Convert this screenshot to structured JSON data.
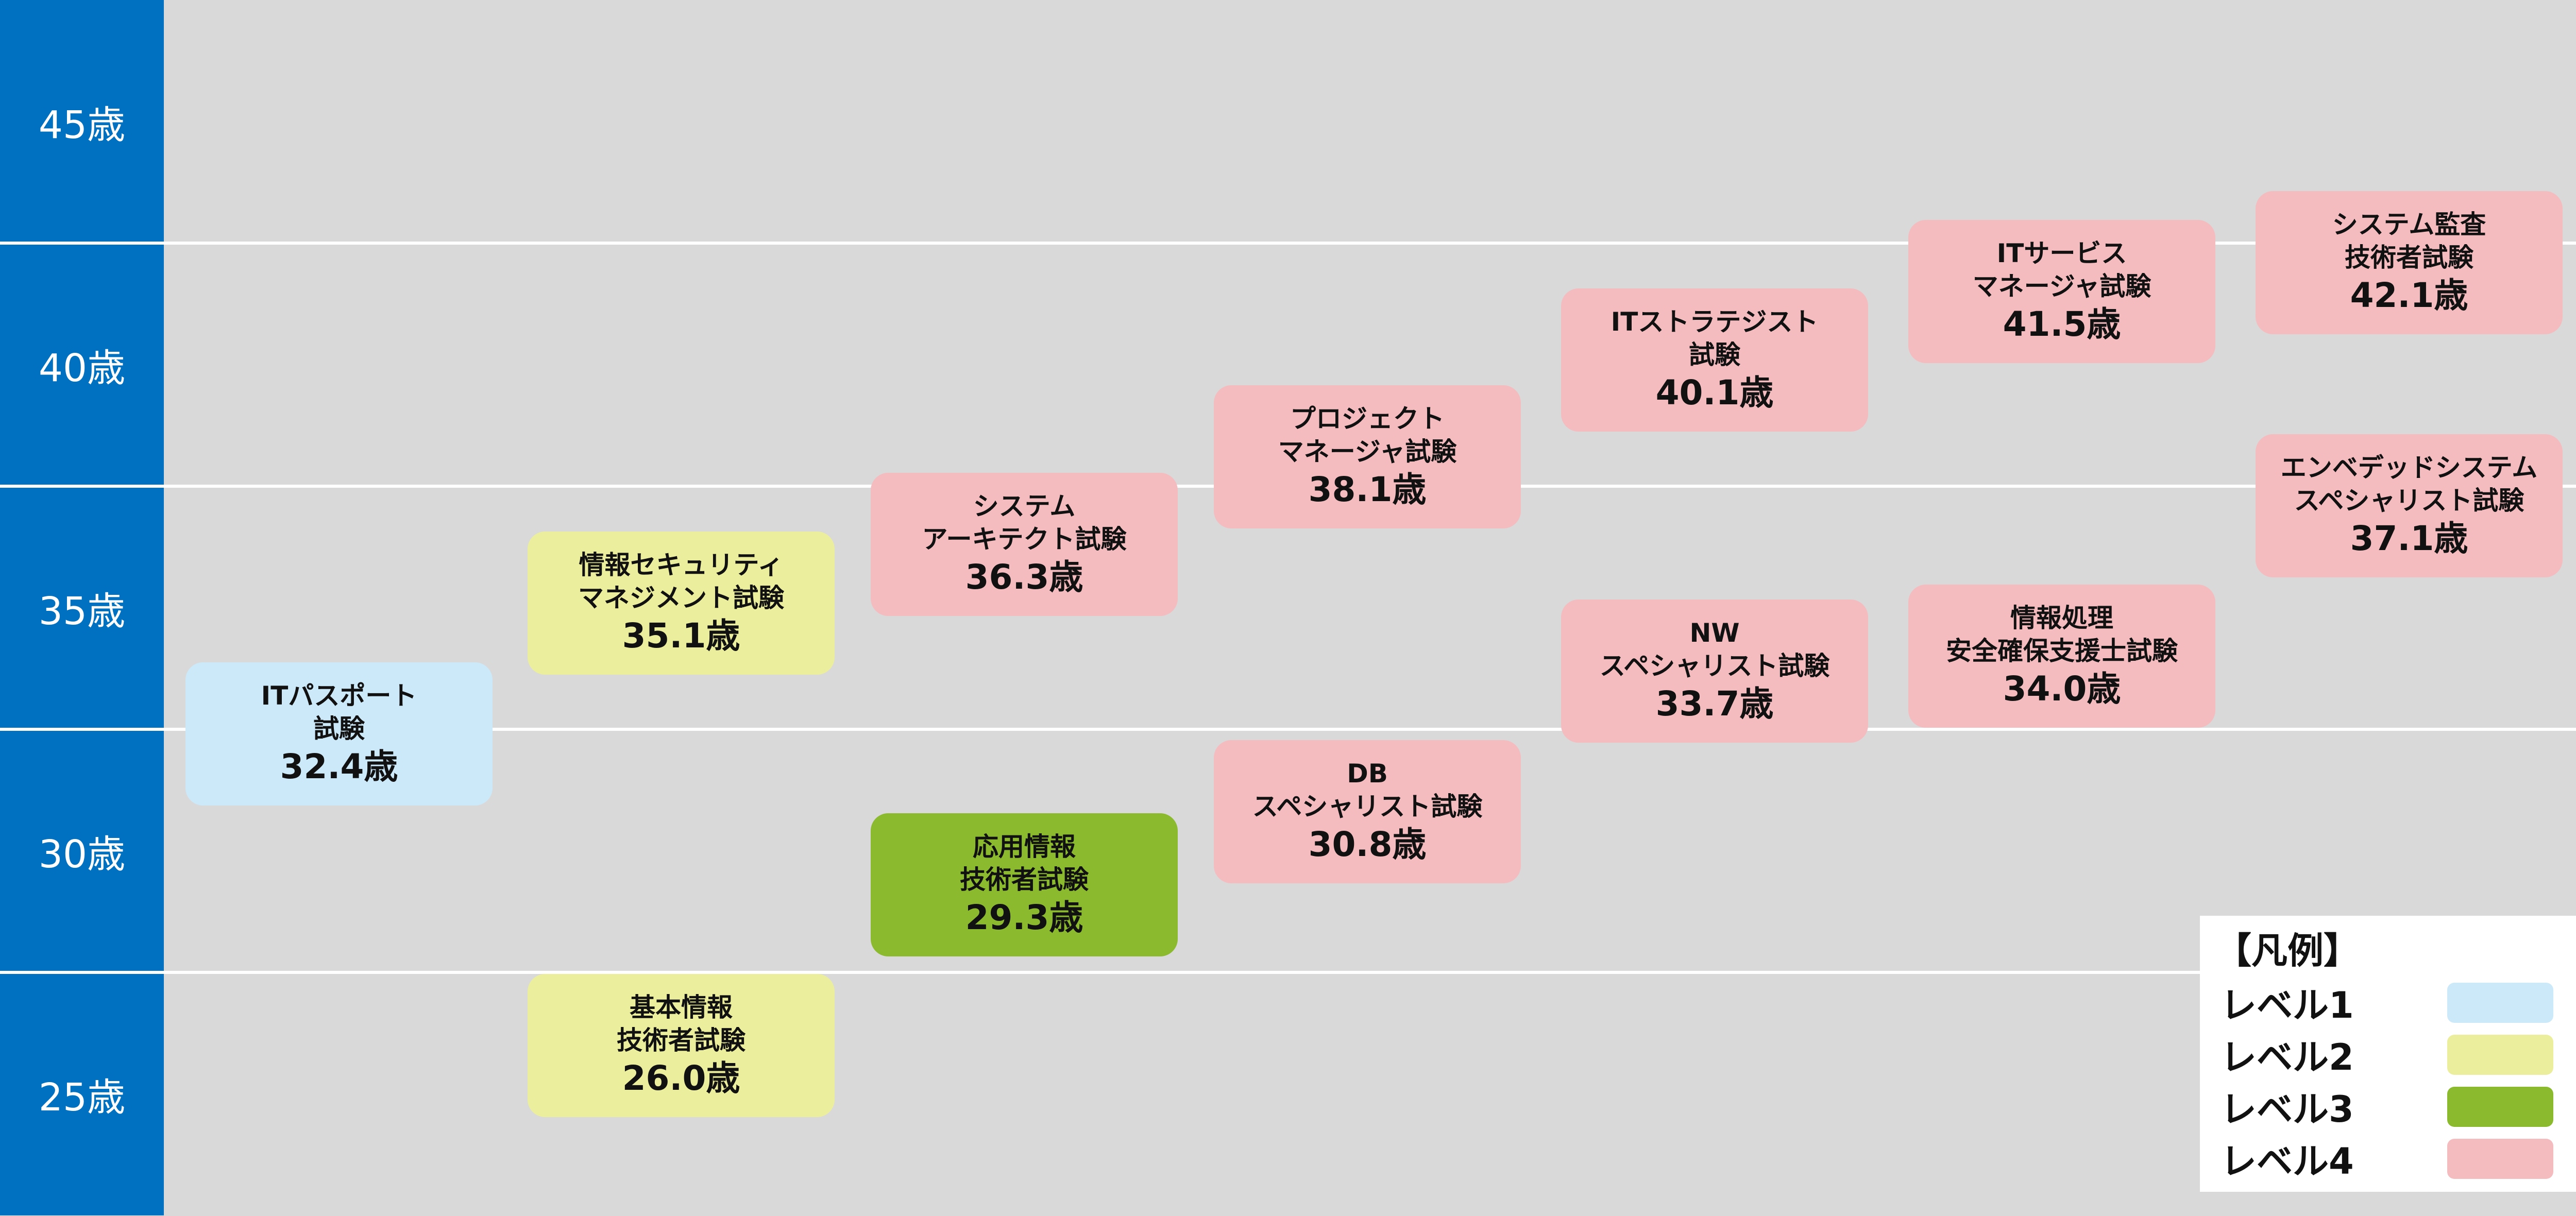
{
  "colors": {
    "axis": "#0070c0",
    "plot_bg": "#d9d9d9",
    "level1": "#cce9f9",
    "level2": "#ebee9c",
    "level3": "#8bba2e",
    "level4": "#f4bcbf"
  },
  "age_axis": [
    "45歳",
    "40歳",
    "35歳",
    "30歳",
    "25歳"
  ],
  "exams": [
    {
      "label": "ITパスポート\n試験",
      "age": "32.4歳",
      "level": 1
    },
    {
      "label": "情報セキュリティ\nマネジメント試験",
      "age": "35.1歳",
      "level": 2
    },
    {
      "label": "基本情報\n技術者試験",
      "age": "26.0歳",
      "level": 2
    },
    {
      "label": "システム\nアーキテクト試験",
      "age": "36.3歳",
      "level": 4
    },
    {
      "label": "応用情報\n技術者試験",
      "age": "29.3歳",
      "level": 3
    },
    {
      "label": "プロジェクト\nマネージャ試験",
      "age": "38.1歳",
      "level": 4
    },
    {
      "label": "DB\nスペシャリスト試験",
      "age": "30.8歳",
      "level": 4
    },
    {
      "label": "ITストラテジスト\n試験",
      "age": "40.1歳",
      "level": 4
    },
    {
      "label": "NW\nスペシャリスト試験",
      "age": "33.7歳",
      "level": 4
    },
    {
      "label": "ITサービス\nマネージャ試験",
      "age": "41.5歳",
      "level": 4
    },
    {
      "label": "情報処理\n安全確保支援士試験",
      "age": "34.0歳",
      "level": 4
    },
    {
      "label": "システム監査\n技術者試験",
      "age": "42.1歳",
      "level": 4
    },
    {
      "label": "エンベデッドシステム\nスペシャリスト試験",
      "age": "37.1歳",
      "level": 4
    }
  ],
  "legend": {
    "title": "【凡例】",
    "items": [
      {
        "label": "レベル1",
        "level": 1
      },
      {
        "label": "レベル2",
        "level": 2
      },
      {
        "label": "レベル3",
        "level": 3
      },
      {
        "label": "レベル4",
        "level": 4
      }
    ]
  }
}
